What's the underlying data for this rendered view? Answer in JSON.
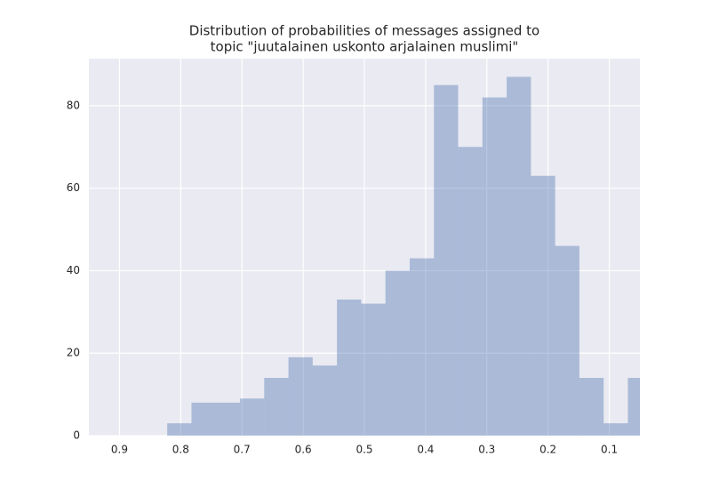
{
  "chart_data": {
    "type": "histogram",
    "title": [
      "Distribution of probabilities of messages assigned to",
      "topic \"juutalainen uskonto arjalainen muslimi\""
    ],
    "bins": [
      0.03,
      0.0696,
      0.1092,
      0.1488,
      0.1884,
      0.228,
      0.2676,
      0.3072,
      0.3468,
      0.3864,
      0.426,
      0.4656,
      0.5052,
      0.5448,
      0.5844,
      0.624,
      0.6636,
      0.7032,
      0.7428,
      0.7824,
      0.822
    ],
    "values": [
      14,
      3,
      14,
      46,
      63,
      87,
      82,
      70,
      85,
      43,
      40,
      32,
      33,
      17,
      19,
      14,
      9,
      8,
      8,
      3
    ],
    "color": "#4c72b0",
    "xlim": [
      0.95,
      0.05
    ],
    "xticks": [
      0.9,
      0.8,
      0.7,
      0.6,
      0.5,
      0.4,
      0.3,
      0.2,
      0.1
    ],
    "ylim": [
      0,
      91.4
    ],
    "yticks": [
      0,
      20,
      40,
      60,
      80
    ],
    "grid": true
  }
}
